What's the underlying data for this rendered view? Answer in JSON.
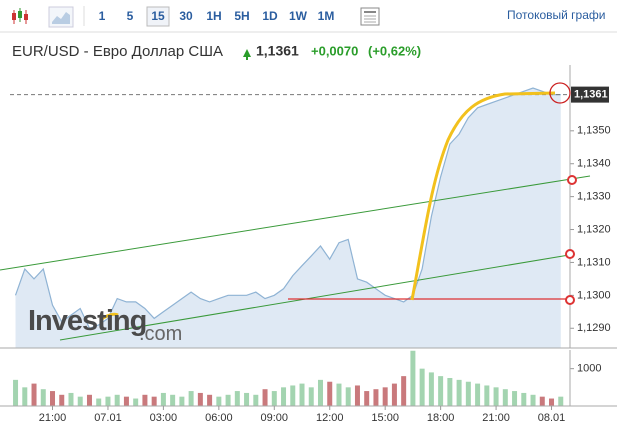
{
  "toolbar": {
    "intervals": [
      "1",
      "5",
      "15",
      "30",
      "1H",
      "5H",
      "1D",
      "1W",
      "1M"
    ],
    "selected": "15",
    "streaming_link": "Потоковый графи"
  },
  "header": {
    "symbol": "EUR/USD - Евро Доллар США",
    "price": "1,1361",
    "change": "+0,0070",
    "change_percent": "(+0,62%)"
  },
  "watermark": {
    "brand": "Investing",
    "suffix": ".com"
  },
  "chart_data": [
    {
      "type": "area",
      "color": "#8fb3d4",
      "fill": "#dfe9f4",
      "x": [
        19.0,
        19.5,
        20.0,
        20.5,
        21.0,
        21.5,
        22.0,
        22.5,
        23.0,
        23.5,
        24.0,
        24.5,
        25.0,
        25.5,
        26.0,
        26.5,
        27.0,
        27.5,
        28.0,
        28.5,
        29.0,
        29.5,
        30.0,
        30.5,
        31.0,
        31.5,
        32.0,
        32.5,
        33.0,
        33.5,
        34.0,
        34.5,
        35.0,
        35.5,
        36.0,
        36.5,
        37.0,
        37.5,
        38.0,
        38.5,
        39.0,
        39.5,
        40.0,
        40.5,
        41.0,
        41.5,
        42.0,
        42.5,
        43.0,
        43.5,
        44.0,
        44.5,
        45.0,
        45.5,
        46.0,
        46.5,
        47.0,
        47.5,
        48.0,
        48.5
      ],
      "values": [
        1.13,
        1.1308,
        1.1305,
        1.1308,
        1.1297,
        1.1292,
        1.1294,
        1.1296,
        1.129,
        1.1291,
        1.1293,
        1.1299,
        1.1298,
        1.1298,
        1.1296,
        1.1293,
        1.1295,
        1.1297,
        1.1299,
        1.1301,
        1.1299,
        1.1298,
        1.1299,
        1.13,
        1.13,
        1.13,
        1.1301,
        1.1299,
        1.13,
        1.1302,
        1.1306,
        1.1309,
        1.1312,
        1.1315,
        1.1311,
        1.1316,
        1.1317,
        1.1305,
        1.1304,
        1.1302,
        1.13,
        1.1299,
        1.1298,
        1.13,
        1.1308,
        1.1324,
        1.1336,
        1.1346,
        1.1349,
        1.1354,
        1.1357,
        1.1358,
        1.1359,
        1.136,
        1.1361,
        1.1362,
        1.1363,
        1.1362,
        1.1361,
        1.1361
      ],
      "xlim": [
        18.7,
        49.0
      ],
      "xticks": [
        {
          "value": 21,
          "label": "21:00"
        },
        {
          "value": 24,
          "label": "07.01"
        },
        {
          "value": 27,
          "label": "03:00"
        },
        {
          "value": 30,
          "label": "06:00"
        },
        {
          "value": 33,
          "label": "09:00"
        },
        {
          "value": 36,
          "label": "12:00"
        },
        {
          "value": 39,
          "label": "15:00"
        },
        {
          "value": 42,
          "label": "18:00"
        },
        {
          "value": 45,
          "label": "21:00"
        },
        {
          "value": 48,
          "label": "08.01"
        }
      ],
      "ylim": [
        1.1284,
        1.137
      ],
      "yticks": [
        {
          "value": 1.129,
          "label": "1,1290"
        },
        {
          "value": 1.13,
          "label": "1,1300"
        },
        {
          "value": 1.131,
          "label": "1,1310"
        },
        {
          "value": 1.132,
          "label": "1,1320"
        },
        {
          "value": 1.133,
          "label": "1,1330"
        },
        {
          "value": 1.134,
          "label": "1,1340"
        },
        {
          "value": 1.135,
          "label": "1,1350"
        }
      ],
      "last_price": {
        "value": 1.1361,
        "label": "1,1361"
      }
    },
    {
      "type": "volume",
      "up_color": "#a3d4b0",
      "down_color": "#c9797c",
      "x": [
        19.0,
        19.5,
        20.0,
        20.5,
        21.0,
        21.5,
        22.0,
        22.5,
        23.0,
        23.5,
        24.0,
        24.5,
        25.0,
        25.5,
        26.0,
        26.5,
        27.0,
        27.5,
        28.0,
        28.5,
        29.0,
        29.5,
        30.0,
        30.5,
        31.0,
        31.5,
        32.0,
        32.5,
        33.0,
        33.5,
        34.0,
        34.5,
        35.0,
        35.5,
        36.0,
        36.5,
        37.0,
        37.5,
        38.0,
        38.5,
        39.0,
        39.5,
        40.0,
        40.5,
        41.0,
        41.5,
        42.0,
        42.5,
        43.0,
        43.5,
        44.0,
        44.5,
        45.0,
        45.5,
        46.0,
        46.5,
        47.0,
        47.5,
        48.0,
        48.5
      ],
      "values": [
        700,
        500,
        600,
        450,
        400,
        300,
        350,
        250,
        300,
        200,
        250,
        300,
        250,
        200,
        300,
        250,
        350,
        300,
        250,
        400,
        350,
        300,
        250,
        300,
        400,
        350,
        300,
        450,
        400,
        500,
        550,
        600,
        500,
        700,
        650,
        600,
        500,
        550,
        400,
        450,
        500,
        600,
        800,
        1480,
        1000,
        900,
        800,
        750,
        700,
        650,
        600,
        550,
        500,
        450,
        400,
        350,
        300,
        250,
        200,
        250
      ],
      "xlim": [
        18.7,
        49.0
      ],
      "ylim": [
        0,
        1500
      ],
      "yticks": [
        1000
      ]
    }
  ]
}
